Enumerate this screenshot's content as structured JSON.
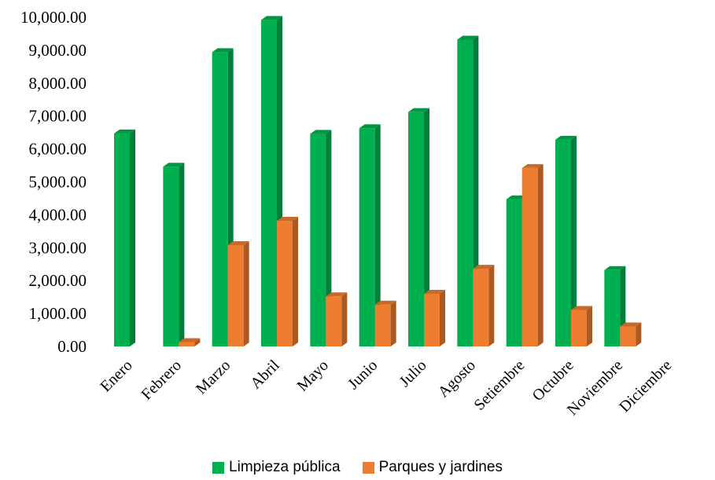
{
  "chart_data": {
    "type": "bar",
    "categories": [
      "Enero",
      "Febrero",
      "Marzo",
      "Abril",
      "Mayo",
      "Junio",
      "Julio",
      "Agosto",
      "Setiembre",
      "Octubre",
      "Noviembre",
      "Diciembre"
    ],
    "series": [
      {
        "name": "Limpieza pública",
        "color": "#00b050",
        "values": [
          6470,
          5460,
          8940,
          9920,
          6460,
          6630,
          7120,
          9320,
          4470,
          6280,
          2320,
          0
        ]
      },
      {
        "name": "Parques y jardines",
        "color": "#ed7d31",
        "values": [
          0,
          130,
          3080,
          3820,
          1520,
          1270,
          1600,
          2360,
          5420,
          1110,
          610,
          0
        ]
      }
    ],
    "yticks": [
      "0.00",
      "1,000.00",
      "2,000.00",
      "3,000.00",
      "4,000.00",
      "5,000.00",
      "6,000.00",
      "7,000.00",
      "8,000.00",
      "9,000.00",
      "10,000.00"
    ],
    "ylim": [
      0,
      10000
    ],
    "grid": false,
    "legend_position": "bottom",
    "style": "3d-column"
  }
}
